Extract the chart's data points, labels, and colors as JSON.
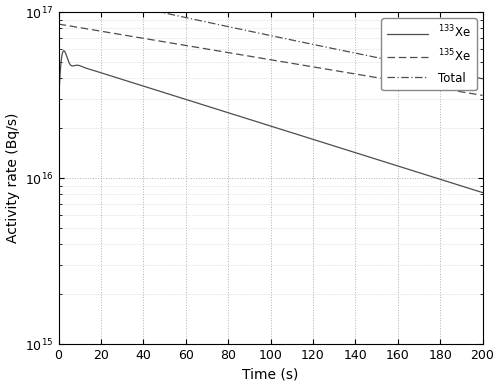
{
  "title": "",
  "xlabel": "Time (s)",
  "ylabel": "Activity rate (Bq/s)",
  "xlim": [
    0,
    200
  ],
  "ylim_log": [
    1000000000000000.0,
    1e+17
  ],
  "xticks": [
    0,
    20,
    40,
    60,
    80,
    100,
    120,
    140,
    160,
    180,
    200
  ],
  "line_color": "#4d4d4d",
  "background_color": "#ffffff",
  "legend_labels": [
    "$^{133}$Xe",
    "$^{135}$Xe",
    "Total"
  ],
  "xe133_A0": 5.2e+16,
  "xe133_half_life": 75.0,
  "xe135_A0": 8.5e+16,
  "xe135_half_life": 140.0,
  "osc_amplitude": 2.8e+16,
  "osc_decay": 0.45,
  "osc_freq": 0.85,
  "osc_phase": 0.5
}
